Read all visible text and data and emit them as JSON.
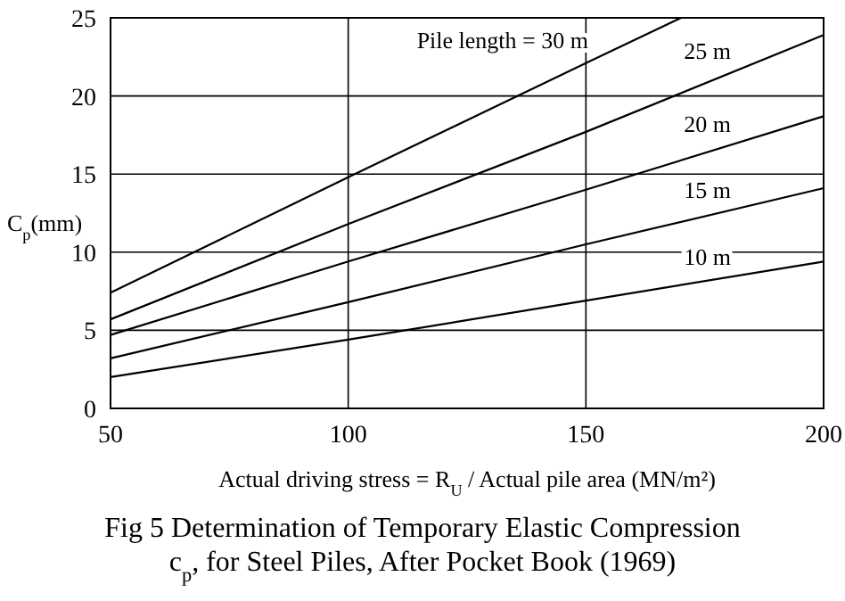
{
  "chart_data": {
    "type": "line",
    "title": "Fig 5 Determination of Temporary Elastic Compression c$_{p}$, for Steel Piles, After Pocket Book (1969)",
    "xlabel": "Actual driving stress = R$_{U}$ / Actual pile area (MN/m²)",
    "ylabel": "C$_{p}$(mm)",
    "xlim": [
      50,
      200
    ],
    "xticks": [
      50,
      100,
      150,
      200
    ],
    "ylim": [
      0,
      25
    ],
    "yticks": [
      0,
      5,
      10,
      15,
      20,
      25
    ],
    "grid": true,
    "line_style": "solid",
    "marker": "none",
    "series": [
      {
        "name": "Pile length = 30 m",
        "color": "#000000",
        "x": [
          50,
          100,
          150,
          170
        ],
        "values": [
          7.4,
          14.8,
          22.1,
          25
        ]
      },
      {
        "name": "25 m",
        "color": "#000000",
        "x": [
          50,
          100,
          150,
          200
        ],
        "values": [
          5.7,
          11.8,
          17.7,
          23.9
        ]
      },
      {
        "name": "20 m",
        "color": "#000000",
        "x": [
          50,
          100,
          150,
          200
        ],
        "values": [
          4.7,
          9.4,
          14.0,
          18.7
        ]
      },
      {
        "name": "15 m",
        "color": "#000000",
        "x": [
          50,
          100,
          150,
          200
        ],
        "values": [
          3.2,
          6.8,
          10.5,
          14.1
        ]
      },
      {
        "name": "10 m",
        "color": "#000000",
        "x": [
          50,
          100,
          150,
          200
        ],
        "values": [
          2.0,
          4.4,
          6.9,
          9.4
        ]
      }
    ]
  }
}
